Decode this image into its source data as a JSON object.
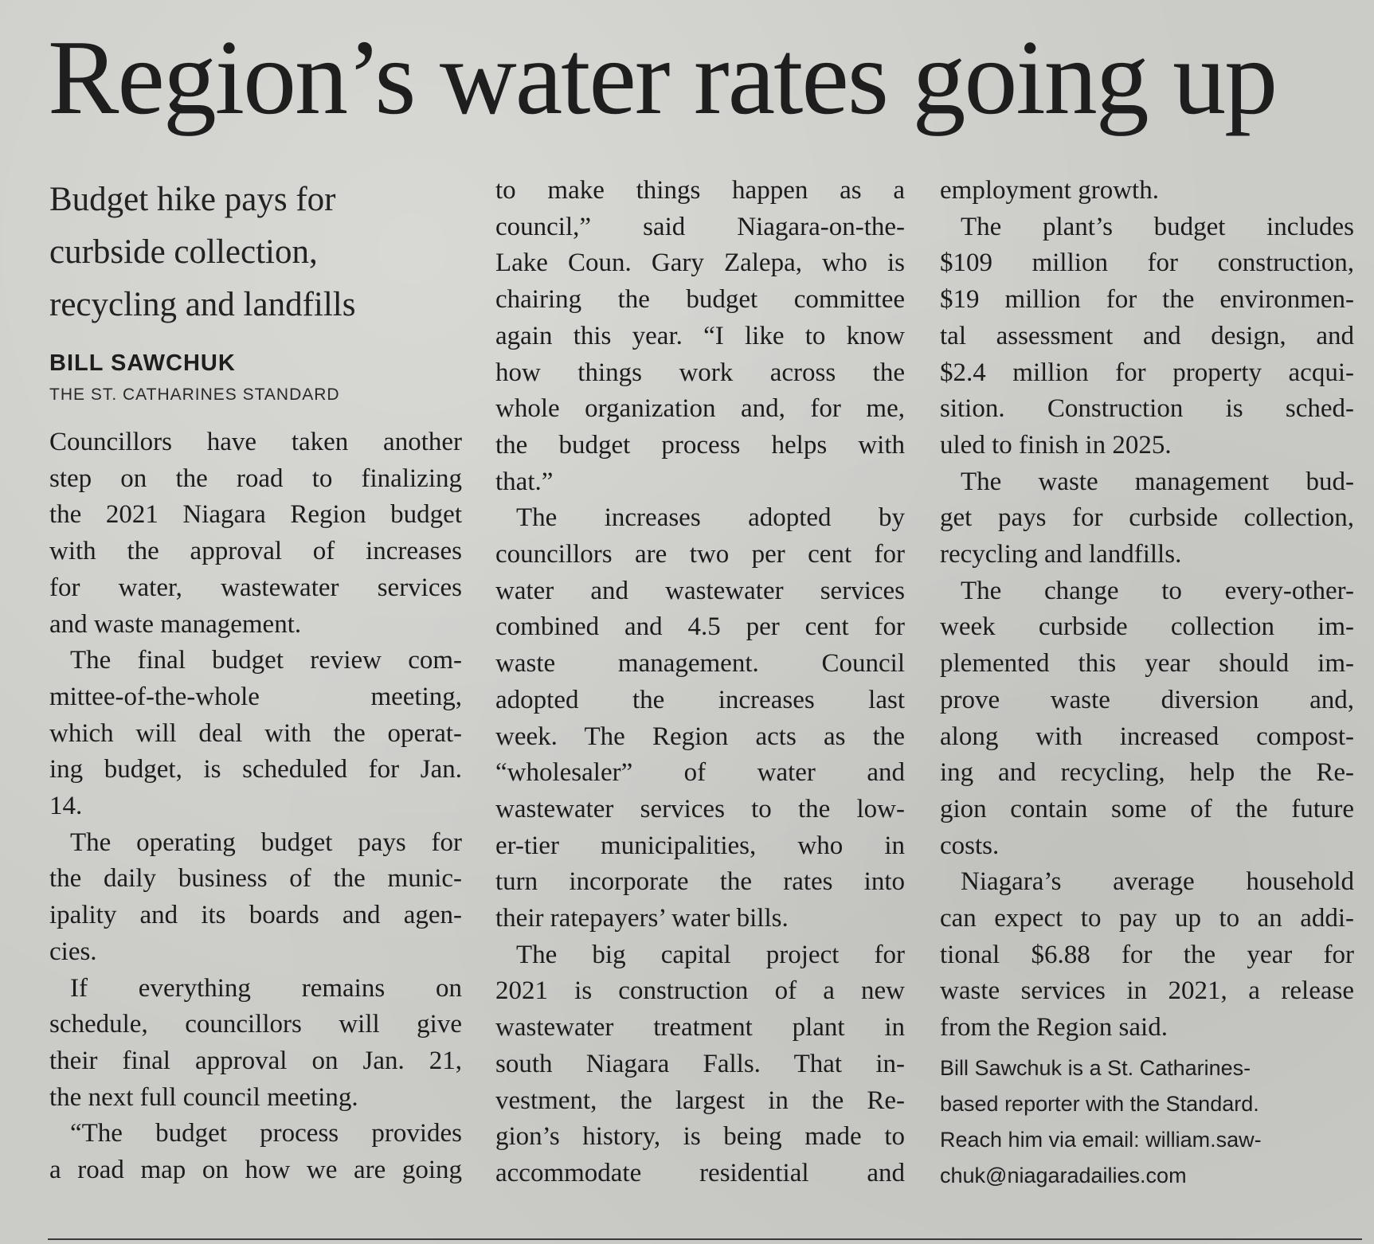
{
  "article": {
    "headline": "Region’s water rates going up",
    "deck_lines": [
      "Budget hike pays for",
      "curbside collection,",
      "recycling and landfills"
    ],
    "byline": {
      "name": "BILL SAWCHUK",
      "organization": "THE ST. CATHARINES STANDARD"
    },
    "columns": [
      [
        {
          "t": "Councillors have taken another"
        },
        {
          "t": "step on the road to finalizing"
        },
        {
          "t": "the 2021 Niagara Region budget"
        },
        {
          "t": "with the approval of increases"
        },
        {
          "t": "for water, wastewater services"
        },
        {
          "t": "and waste management.",
          "last": true
        },
        {
          "t": "The final budget review com-",
          "indent": true
        },
        {
          "t": "mittee-of-the-whole meeting,"
        },
        {
          "t": "which will deal with the operat-"
        },
        {
          "t": "ing budget, is scheduled for Jan."
        },
        {
          "t": "14.",
          "last": true
        },
        {
          "t": "The operating budget pays for",
          "indent": true
        },
        {
          "t": "the daily business of the munic-"
        },
        {
          "t": "ipality and its boards and agen-"
        },
        {
          "t": "cies.",
          "last": true
        },
        {
          "t": "If everything remains on",
          "indent": true
        },
        {
          "t": "schedule, councillors will give"
        },
        {
          "t": "their final approval on Jan. 21,"
        },
        {
          "t": "the next full council meeting.",
          "last": true
        },
        {
          "t": "“The budget process provides",
          "indent": true
        },
        {
          "t": "a road map on how we are going"
        }
      ],
      [
        {
          "t": "to make things happen as a"
        },
        {
          "t": "council,” said Niagara-on-the-"
        },
        {
          "t": "Lake Coun. Gary Zalepa, who is"
        },
        {
          "t": "chairing the budget committee"
        },
        {
          "t": "again this year. “I like to know"
        },
        {
          "t": "how things work across the"
        },
        {
          "t": "whole organization and, for me,"
        },
        {
          "t": "the budget process helps with"
        },
        {
          "t": "that.”",
          "last": true
        },
        {
          "t": "The increases adopted by",
          "indent": true
        },
        {
          "t": "councillors are two per cent for"
        },
        {
          "t": "water and wastewater services"
        },
        {
          "t": "combined and 4.5 per cent for"
        },
        {
          "t": "waste management. Council"
        },
        {
          "t": "adopted the increases last"
        },
        {
          "t": "week. The Region acts as the"
        },
        {
          "t": "“wholesaler” of water and"
        },
        {
          "t": "wastewater services to the low-"
        },
        {
          "t": "er-tier municipalities, who in"
        },
        {
          "t": "turn incorporate the rates into"
        },
        {
          "t": "their ratepayers’ water bills.",
          "last": true
        },
        {
          "t": "The big capital project for",
          "indent": true
        },
        {
          "t": "2021 is construction of a new"
        },
        {
          "t": "wastewater treatment plant in"
        },
        {
          "t": "south Niagara Falls. That in-"
        },
        {
          "t": "vestment, the largest in the Re-"
        },
        {
          "t": "gion’s history, is being made to"
        },
        {
          "t": "accommodate residential and"
        }
      ],
      [
        {
          "t": "employment growth.",
          "last": true
        },
        {
          "t": "The plant’s budget includes",
          "indent": true
        },
        {
          "t": "$109 million for construction,"
        },
        {
          "t": "$19 million for the environmen-"
        },
        {
          "t": "tal assessment and design, and"
        },
        {
          "t": "$2.4 million for property acqui-"
        },
        {
          "t": "sition. Construction is sched-"
        },
        {
          "t": "uled to finish in 2025.",
          "last": true
        },
        {
          "t": "The waste management bud-",
          "indent": true
        },
        {
          "t": "get pays for curbside collection,"
        },
        {
          "t": "recycling and landfills.",
          "last": true
        },
        {
          "t": "The change to every-other-",
          "indent": true
        },
        {
          "t": "week curbside collection im-"
        },
        {
          "t": "plemented this year should im-"
        },
        {
          "t": "prove waste diversion and,"
        },
        {
          "t": "along with increased compost-"
        },
        {
          "t": "ing and recycling, help the Re-"
        },
        {
          "t": "gion contain some of the future"
        },
        {
          "t": "costs.",
          "last": true
        },
        {
          "t": "Niagara’s average household",
          "indent": true
        },
        {
          "t": "can expect to pay up to an addi-"
        },
        {
          "t": "tional $6.88 for the year for"
        },
        {
          "t": "waste services in 2021, a release"
        },
        {
          "t": "from the Region said.",
          "last": true
        }
      ]
    ],
    "tagline_lines": [
      "Bill Sawchuk is a St. Catharines-",
      "based reporter with the Standard.",
      "Reach him via email: william.saw-",
      "chuk@niagaradailies.com"
    ]
  }
}
